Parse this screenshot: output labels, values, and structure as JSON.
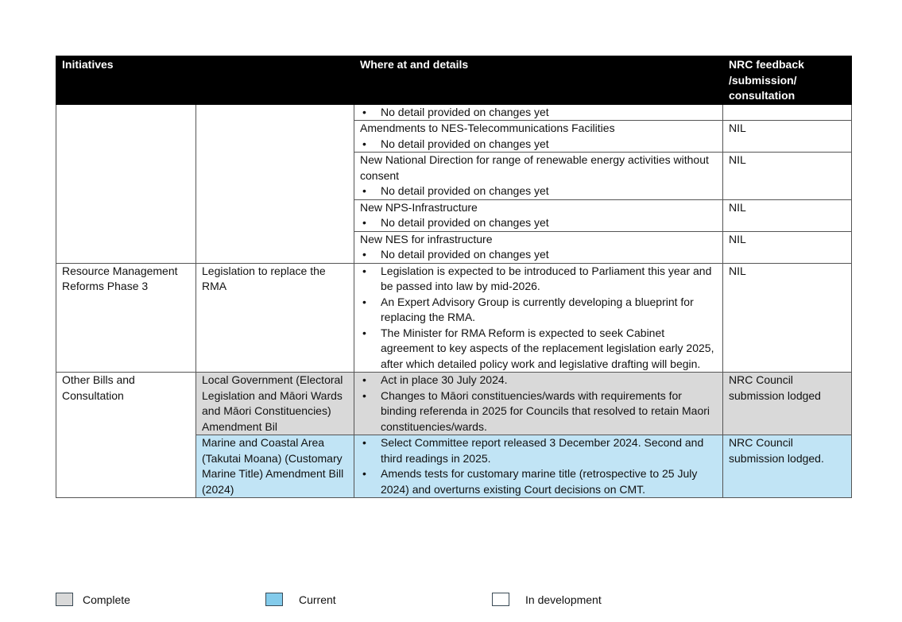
{
  "headers": {
    "initiatives": "Initiatives",
    "where": "Where at and details",
    "feedback": "NRC feedback /submission/ consultation"
  },
  "rows": [
    {
      "title": "",
      "bullets": [
        "No detail provided on changes yet"
      ],
      "feedback": ""
    },
    {
      "title": "Amendments to NES-Telecommunications Facilities",
      "bullets": [
        "No detail provided on changes yet"
      ],
      "feedback": "NIL"
    },
    {
      "title": "New National Direction for range of renewable energy activities without consent",
      "bullets": [
        "No detail provided on changes yet"
      ],
      "feedback": "NIL"
    },
    {
      "title": "New NPS-Infrastructure",
      "bullets": [
        "No detail provided on changes yet"
      ],
      "feedback": "NIL"
    },
    {
      "title": "New NES for infrastructure",
      "bullets": [
        "No detail provided on changes yet"
      ],
      "feedback": "NIL"
    }
  ],
  "rma": {
    "group": "Resource Management Reforms Phase 3",
    "initiative": "Legislation to replace the RMA",
    "bullets": [
      "Legislation is expected to be introduced to Parliament this year and be passed into law by mid-2026.",
      "An Expert Advisory Group is currently developing a blueprint for replacing the RMA.",
      "The Minister for RMA Reform is expected to seek Cabinet agreement to key aspects of the replacement legislation early 2025, after which detailed policy work and legislative drafting will begin."
    ],
    "feedback": "NIL",
    "status": "In development"
  },
  "other": {
    "group": "Other Bills and Consultation",
    "items": [
      {
        "initiative": "Local Government (Electoral Legislation and Māori Wards and Māori Constituencies) Amendment Bil",
        "bullets": [
          "Act in place 30 July 2024.",
          "Changes to Māori constituencies/wards with requirements for binding referenda in 2025 for Councils that resolved to retain Maori constituencies/wards."
        ],
        "feedback": "NRC Council submission lodged",
        "status": "Complete"
      },
      {
        "initiative": "Marine and Coastal Area (Takutai Moana) (Customary Marine Title) Amendment Bill (2024)",
        "bullets": [
          "Select Committee report released 3 December 2024. Second and third readings in 2025.",
          "Amends tests for customary marine title (retrospective to 25 July 2024) and overturns existing Court decisions on CMT."
        ],
        "feedback": "NRC Council submission lodged.",
        "status": "Current"
      }
    ]
  },
  "legend": [
    {
      "label": "Complete",
      "color": "#d9d9d9"
    },
    {
      "label": "Current",
      "color": "#83cbeb"
    },
    {
      "label": "In development",
      "color": "#ffffff"
    }
  ]
}
